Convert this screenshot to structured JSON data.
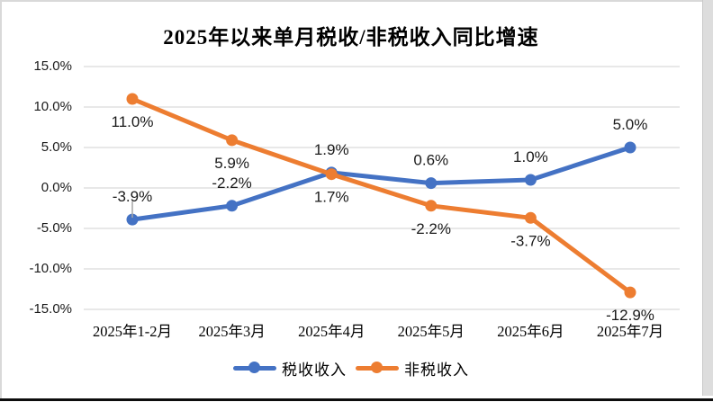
{
  "chart_data": {
    "type": "line",
    "title": "2025年以来单月税收/非税收入同比增速",
    "categories": [
      "2025年1-2月",
      "2025年3月",
      "2025年4月",
      "2025年5月",
      "2025年6月",
      "2025年7月"
    ],
    "series": [
      {
        "name": "税收收入",
        "color": "#4472C4",
        "values": [
          -3.9,
          -2.2,
          1.9,
          0.6,
          1.0,
          5.0
        ],
        "point_labels": [
          "-3.9%",
          "-2.2%",
          "1.9%",
          "0.6%",
          "1.0%",
          "5.0%"
        ],
        "label_side": "above"
      },
      {
        "name": "非税收入",
        "color": "#ED7D31",
        "values": [
          11.0,
          5.9,
          1.7,
          -2.2,
          -3.7,
          -12.9
        ],
        "point_labels": [
          "11.0%",
          "5.9%",
          "1.7%",
          "-2.2%",
          "-3.7%",
          "-12.9%"
        ],
        "label_side": "below"
      }
    ],
    "y_axis": {
      "min": -15,
      "max": 15,
      "step": 5,
      "tick_labels": [
        "15.0%",
        "10.0%",
        "5.0%",
        "0.0%",
        "-5.0%",
        "-10.0%",
        "-15.0%"
      ]
    },
    "grid": true,
    "legend_position": "bottom",
    "leader_lines": [
      {
        "series_index": 0,
        "point_index": 0
      }
    ]
  },
  "colors": {
    "series_blue": "#4472C4",
    "series_orange": "#ED7D31",
    "gridline": "#D9D9D9",
    "text": "#1A1A1A",
    "leader_line": "#A6A6A6",
    "frame_border": "#D9D9D9",
    "bottom_rule": "#0D0D0D"
  }
}
